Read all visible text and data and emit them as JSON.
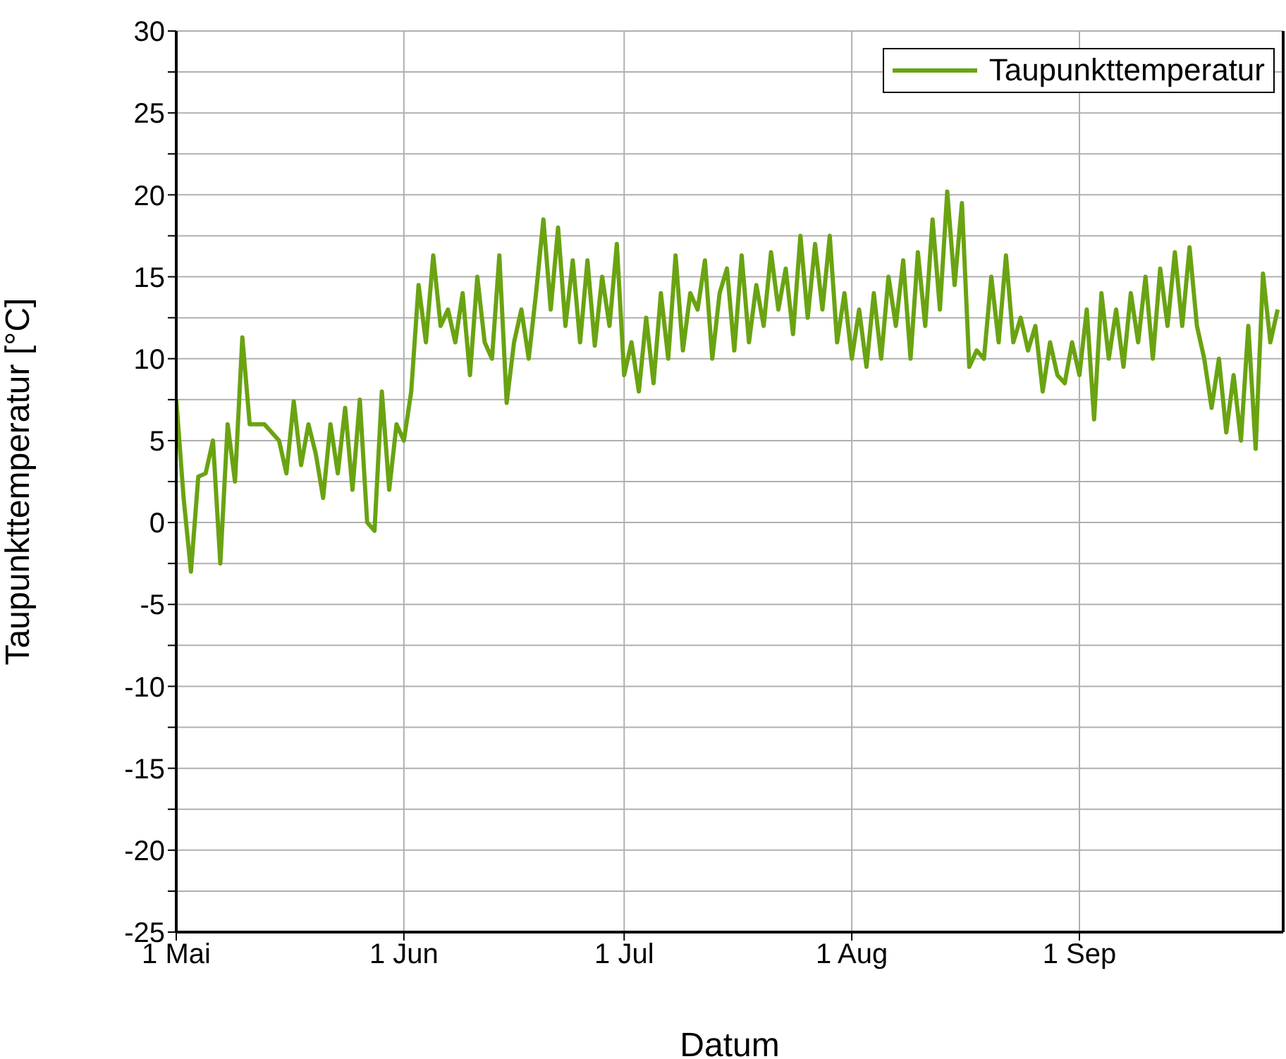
{
  "chart_data": {
    "type": "line",
    "xlabel": "Datum",
    "ylabel": "Taupunkttemperatur [°C]",
    "xlim": [
      "--05-01",
      "--09-28T18:00"
    ],
    "xticks": [
      {
        "value": "--05-01",
        "label": "1 Mai"
      },
      {
        "value": "--06-01",
        "label": "1 Jun"
      },
      {
        "value": "--07-01",
        "label": "1 Jul"
      },
      {
        "value": "--08-01",
        "label": "1 Aug"
      },
      {
        "value": "--09-01",
        "label": "1 Sep"
      }
    ],
    "ylim": [
      -25,
      30
    ],
    "yticks": [
      -25,
      {
        "value": -22.5,
        "label": null
      },
      -20,
      {
        "value": -17.5,
        "label": null
      },
      -15,
      {
        "value": -12.5,
        "label": null
      },
      -10,
      {
        "value": -7.5,
        "label": null
      },
      -5,
      {
        "value": -2.5,
        "label": null
      },
      0,
      {
        "value": 2.5,
        "label": null
      },
      5,
      {
        "value": 7.5,
        "label": null
      },
      10,
      {
        "value": 12.5,
        "label": null
      },
      15,
      {
        "value": 17.5,
        "label": null
      },
      20,
      {
        "value": 22.5,
        "label": null
      },
      25,
      {
        "value": 27.5,
        "label": null
      },
      30
    ],
    "grid": true,
    "legend": "top right",
    "marker": "none",
    "line_style": "solid",
    "series": [
      {
        "name": "Taupunkttemperatur",
        "color": "#6aa312",
        "x": [
          "--05-01",
          "--05-02",
          "--05-03",
          "--05-04",
          "--05-05",
          "--05-06",
          "--05-07",
          "--05-08",
          "--05-09",
          "--05-10",
          "--05-11",
          "--05-12",
          "--05-13",
          "--05-14",
          "--05-15",
          "--05-16",
          "--05-17",
          "--05-18",
          "--05-19",
          "--05-20",
          "--05-21",
          "--05-22",
          "--05-23",
          "--05-24",
          "--05-25",
          "--05-26",
          "--05-27",
          "--05-28",
          "--05-29",
          "--05-30",
          "--05-31",
          "--06-01",
          "--06-02",
          "--06-03",
          "--06-04",
          "--06-05",
          "--06-06",
          "--06-07",
          "--06-08",
          "--06-09",
          "--06-10",
          "--06-11",
          "--06-12",
          "--06-13",
          "--06-14",
          "--06-15",
          "--06-16",
          "--06-17",
          "--06-18",
          "--06-19",
          "--06-20",
          "--06-21",
          "--06-22",
          "--06-23",
          "--06-24",
          "--06-25",
          "--06-26",
          "--06-27",
          "--06-28",
          "--06-29",
          "--06-30",
          "--07-01",
          "--07-02",
          "--07-03",
          "--07-04",
          "--07-05",
          "--07-06",
          "--07-07",
          "--07-08",
          "--07-09",
          "--07-10",
          "--07-11",
          "--07-12",
          "--07-13",
          "--07-14",
          "--07-15",
          "--07-16",
          "--07-17",
          "--07-18",
          "--07-19",
          "--07-20",
          "--07-21",
          "--07-22",
          "--07-23",
          "--07-24",
          "--07-25",
          "--07-26",
          "--07-27",
          "--07-28",
          "--07-29",
          "--07-30",
          "--07-31",
          "--08-01",
          "--08-02",
          "--08-03",
          "--08-04",
          "--08-05",
          "--08-06",
          "--08-07",
          "--08-08",
          "--08-09",
          "--08-10",
          "--08-11",
          "--08-12",
          "--08-13",
          "--08-14",
          "--08-15",
          "--08-16",
          "--08-17",
          "--08-18",
          "--08-19",
          "--08-20",
          "--08-21",
          "--08-22",
          "--08-23",
          "--08-24",
          "--08-25",
          "--08-26",
          "--08-27",
          "--08-28",
          "--08-29",
          "--08-30",
          "--08-31",
          "--09-01",
          "--09-02",
          "--09-03",
          "--09-04",
          "--09-05",
          "--09-06",
          "--09-07",
          "--09-08",
          "--09-09",
          "--09-10",
          "--09-11",
          "--09-12",
          "--09-13",
          "--09-14",
          "--09-15",
          "--09-16",
          "--09-17",
          "--09-18",
          "--09-19",
          "--09-20",
          "--09-21",
          "--09-22",
          "--09-23",
          "--09-24",
          "--09-25",
          "--09-26",
          "--09-27",
          "--09-28"
        ],
        "values": [
          7.5,
          1.5,
          -3,
          2.8,
          3,
          5,
          -2.5,
          6,
          2.5,
          11.3,
          6,
          6,
          6,
          5.5,
          5,
          3,
          7.4,
          3.5,
          6,
          4.2,
          1.5,
          6,
          3,
          7,
          2,
          7.5,
          0,
          -0.5,
          8,
          2,
          6,
          5,
          8,
          14.5,
          11,
          16.3,
          12,
          13,
          11,
          14,
          9,
          15,
          11,
          10,
          16.3,
          7.3,
          11,
          13,
          10,
          14,
          18.5,
          13,
          18,
          12,
          16,
          11,
          16,
          10.8,
          15,
          12,
          17,
          9,
          11,
          8,
          12.5,
          8.5,
          14,
          10,
          16.3,
          10.5,
          14,
          13,
          16,
          10,
          14,
          15.5,
          10.5,
          16.3,
          11,
          14.5,
          12,
          16.5,
          13,
          15.5,
          11.5,
          17.5,
          12.5,
          17,
          13,
          17.5,
          11,
          14,
          10,
          13,
          9.5,
          14,
          10,
          15,
          12,
          16,
          10,
          16.5,
          12,
          18.5,
          13,
          20.2,
          14.5,
          19.5,
          9.5,
          10.5,
          10,
          15,
          11,
          16.3,
          11,
          12.5,
          10.5,
          12,
          8,
          11,
          9,
          8.5,
          11,
          9,
          13,
          6.3,
          14,
          10,
          13,
          9.5,
          14,
          11,
          15,
          10,
          15.5,
          12,
          16.5,
          12,
          16.8,
          12,
          10,
          7,
          10,
          5.5,
          9,
          5,
          12,
          4.5,
          15.2,
          11,
          13
        ]
      }
    ]
  }
}
